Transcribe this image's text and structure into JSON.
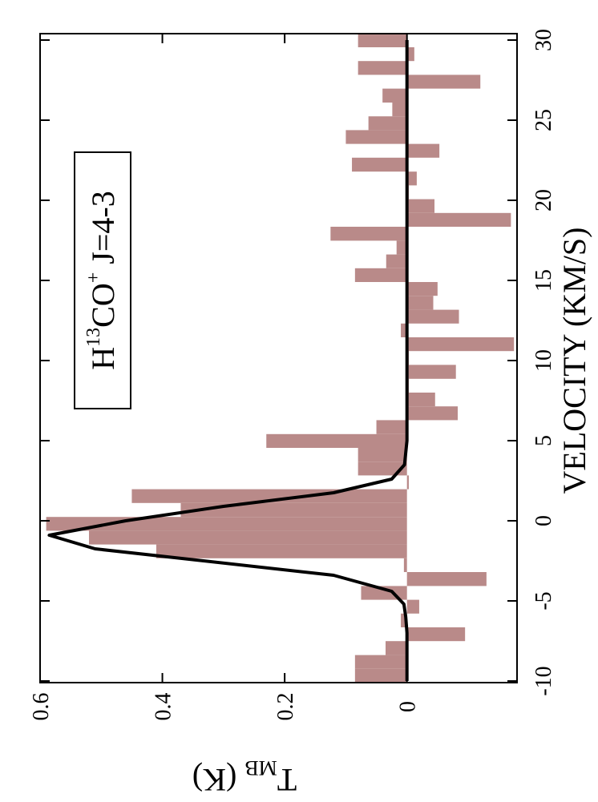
{
  "chart_data": {
    "type": "histogram",
    "xlabel": "VELOCITY (KM/S)",
    "ylabel": {
      "main": "T",
      "sub": "MB",
      "unit": " (K)"
    },
    "annotation": {
      "main": "H",
      "sup1": "13",
      "mid": "CO",
      "sup2": "+",
      "rest": " J=4-3"
    },
    "bins": [
      -10.1,
      -9.24,
      -8.38,
      -7.51,
      -6.65,
      -5.79,
      -4.93,
      -4.07,
      -3.2,
      -2.34,
      -1.48,
      -0.62,
      0.24,
      1.11,
      1.97,
      2.83,
      3.69,
      4.55,
      5.41,
      6.28,
      7.14,
      8.0,
      8.86,
      9.73,
      10.59,
      11.45,
      12.31,
      13.17,
      14.04,
      14.9,
      15.76,
      16.62,
      17.48,
      18.35,
      19.21,
      20.07,
      20.93,
      21.79,
      22.66,
      23.52,
      24.38,
      25.24,
      26.1,
      26.97,
      27.83,
      28.69,
      29.55,
      30.41
    ],
    "values": [
      0.085,
      0.085,
      0.035,
      -0.095,
      0.01,
      -0.02,
      0.075,
      -0.13,
      0.005,
      0.41,
      0.52,
      0.59,
      0.37,
      0.45,
      -0.003,
      0.08,
      0.08,
      0.23,
      0.05,
      -0.083,
      -0.046,
      -0.003,
      -0.08,
      -0.003,
      -0.175,
      0.01,
      -0.085,
      -0.043,
      -0.05,
      0.085,
      0.034,
      0.017,
      0.125,
      -0.17,
      -0.045,
      -0.003,
      -0.016,
      0.09,
      -0.053,
      0.1,
      0.063,
      0.024,
      0.04,
      -0.12,
      0.08,
      -0.012,
      0.08
    ],
    "color": "#b98a89",
    "fit": {
      "x": [
        -10,
        -7,
        -6,
        -5.2,
        -4.4,
        -3.4,
        -1.75,
        -0.9,
        0,
        0.9,
        1.75,
        2.6,
        3.5,
        5,
        10,
        20,
        30
      ],
      "values": [
        0,
        0,
        0.002,
        0.005,
        0.025,
        0.12,
        0.51,
        0.585,
        0.46,
        0.3,
        0.12,
        0.025,
        0.004,
        0,
        0,
        0,
        0
      ],
      "color": "#000000"
    },
    "xlim": [
      -10.1,
      30.4
    ],
    "xticks": [
      -10,
      -5,
      0,
      5,
      10,
      15,
      20,
      25,
      30
    ],
    "ylim": [
      -0.18,
      0.6
    ],
    "yticks": [
      0,
      0.2,
      0.4,
      0.6
    ]
  }
}
